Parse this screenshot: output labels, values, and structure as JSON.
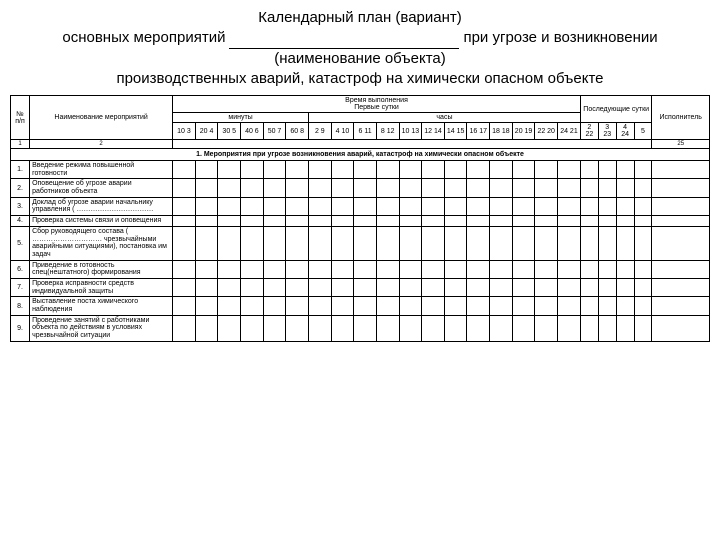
{
  "title": {
    "line1": "Календарный план (вариант)",
    "line2_left": "основных мероприятий",
    "line2_right": "при угрозе и возникновении",
    "line3": "(наименование объекта)",
    "line4": "производственных аварий, катастроф на химически опасном объекте"
  },
  "colors": {
    "background": "#ffffff",
    "text": "#000000",
    "border": "#000000"
  },
  "table": {
    "headers": {
      "col_num": "№ п/п",
      "col_name": "Наименование мероприятий",
      "time_top": "Время выполнения",
      "time_sub": "Первые сутки",
      "minutes": "минуты",
      "hours": "часы",
      "next_days": "Последующие сутки",
      "executor": "Исполнитель",
      "minute_pairs": [
        "10 3",
        "20 4",
        "30 5",
        "40 6",
        "50 7",
        "60 8"
      ],
      "hour_cells": [
        "2 9",
        "4 10",
        "6 11",
        "8 12",
        "10 13",
        "12 14",
        "14 15",
        "16 17",
        "18 18",
        "20 19",
        "22 20",
        "24 21"
      ],
      "day_cells": [
        "2 22",
        "3 23",
        "4 24",
        "5"
      ],
      "idx_num": "1",
      "idx_name": "2",
      "idx_exec": "25"
    },
    "section1": "1.  Мероприятия при угрозе возникновения аварий, катастроф на химически опасном объекте",
    "rows": [
      {
        "n": "1.",
        "name": "Введение режима повышенной готовности"
      },
      {
        "n": "2.",
        "name": "Оповещение об угрозе аварии работников объекта"
      },
      {
        "n": "3.",
        "name": "Доклад об угрозе аварии начальнику управления ( ……………………………"
      },
      {
        "n": "4.",
        "name": "Проверка системы связи и оповещения"
      },
      {
        "n": "5.",
        "name": "Сбор руководящего состава ( ………………………… чрезвычайными аварийными ситуациями), постановка им задач"
      },
      {
        "n": "6.",
        "name": "Приведение в готовность спец(нештатного) формирования"
      },
      {
        "n": "7.",
        "name": "Проверка исправности средств индивидуальной защиты"
      },
      {
        "n": "8.",
        "name": "Выставление поста химического наблюдения"
      },
      {
        "n": "9.",
        "name": "Проведение занятий с работниками объекта по действиям в условиях чрезвычайной ситуации"
      }
    ]
  }
}
